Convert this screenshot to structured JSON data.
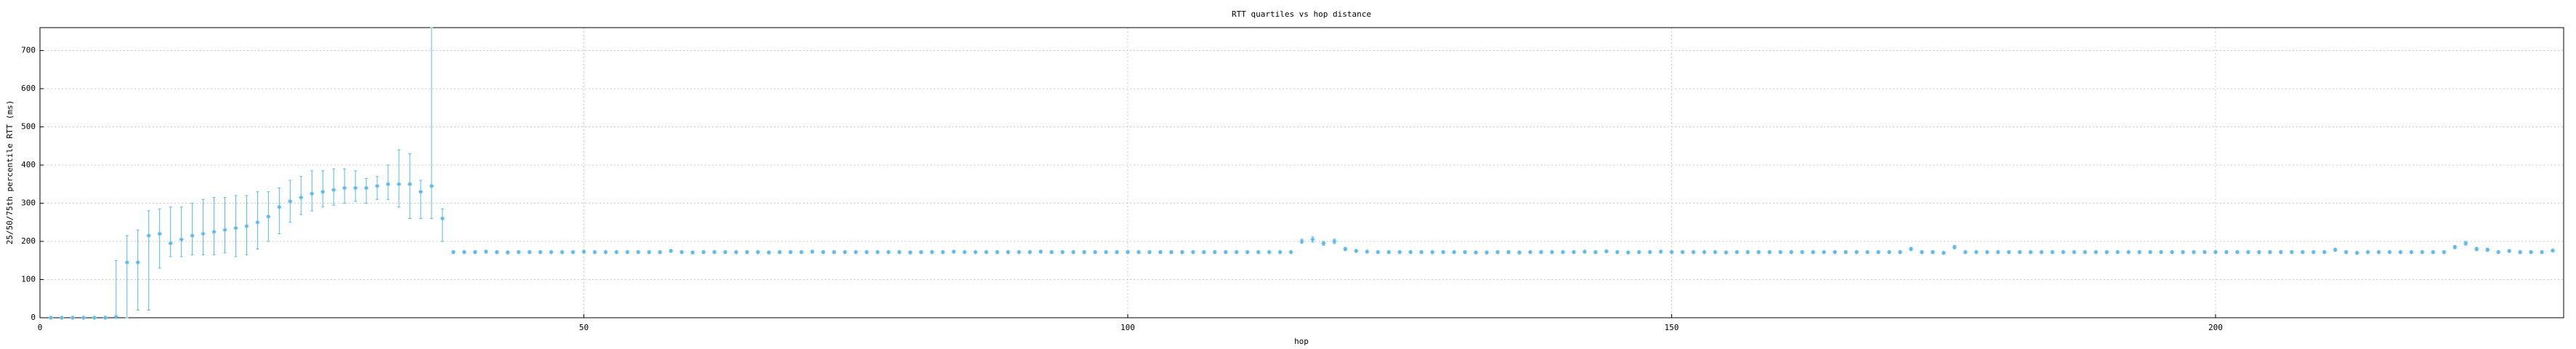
{
  "chart_data": {
    "type": "errorbar",
    "title": "RTT quartiles vs hop distance",
    "xlabel": "hop",
    "ylabel": "25/50/75th percentile RTT (ms)",
    "color": "#5bb8e8",
    "grid": true,
    "xlim": [
      0,
      232
    ],
    "ylim": [
      0,
      760
    ],
    "xticks": [
      0,
      50,
      100,
      150,
      200
    ],
    "yticks": [
      0,
      100,
      200,
      300,
      400,
      500,
      600,
      700
    ],
    "x": [
      1,
      2,
      3,
      4,
      5,
      6,
      7,
      8,
      9,
      10,
      11,
      12,
      13,
      14,
      15,
      16,
      17,
      18,
      19,
      20,
      21,
      22,
      23,
      24,
      25,
      26,
      27,
      28,
      29,
      30,
      31,
      32,
      33,
      34,
      35,
      36,
      37,
      38,
      39,
      40,
      41,
      42,
      43,
      44,
      45,
      46,
      47,
      48,
      49,
      50,
      51,
      52,
      53,
      54,
      55,
      56,
      57,
      58,
      59,
      60,
      61,
      62,
      63,
      64,
      65,
      66,
      67,
      68,
      69,
      70,
      71,
      72,
      73,
      74,
      75,
      76,
      77,
      78,
      79,
      80,
      81,
      82,
      83,
      84,
      85,
      86,
      87,
      88,
      89,
      90,
      91,
      92,
      93,
      94,
      95,
      96,
      97,
      98,
      99,
      100,
      101,
      102,
      103,
      104,
      105,
      106,
      107,
      108,
      109,
      110,
      111,
      112,
      113,
      114,
      115,
      116,
      117,
      118,
      119,
      120,
      121,
      122,
      123,
      124,
      125,
      126,
      127,
      128,
      129,
      130,
      131,
      132,
      133,
      134,
      135,
      136,
      137,
      138,
      139,
      140,
      141,
      142,
      143,
      144,
      145,
      146,
      147,
      148,
      149,
      150,
      151,
      152,
      153,
      154,
      155,
      156,
      157,
      158,
      159,
      160,
      161,
      162,
      163,
      164,
      165,
      166,
      167,
      168,
      169,
      170,
      171,
      172,
      173,
      174,
      175,
      176,
      177,
      178,
      179,
      180,
      181,
      182,
      183,
      184,
      185,
      186,
      187,
      188,
      189,
      190,
      191,
      192,
      193,
      194,
      195,
      196,
      197,
      198,
      199,
      200,
      201,
      202,
      203,
      204,
      205,
      206,
      207,
      208,
      209,
      210,
      211,
      212,
      213,
      214,
      215,
      216,
      217,
      218,
      219,
      220,
      221,
      222,
      223,
      224,
      225,
      226,
      227,
      228,
      229,
      230,
      231
    ],
    "values": [
      0,
      0,
      0,
      0,
      0,
      0,
      2,
      145,
      145,
      215,
      220,
      195,
      205,
      215,
      220,
      225,
      230,
      235,
      240,
      250,
      265,
      290,
      305,
      315,
      325,
      330,
      335,
      340,
      340,
      340,
      345,
      350,
      350,
      350,
      330,
      345,
      260,
      172,
      172,
      172,
      173,
      172,
      171,
      172,
      172,
      172,
      172,
      172,
      172,
      173,
      172,
      172,
      172,
      172,
      172,
      172,
      172,
      175,
      172,
      171,
      172,
      172,
      172,
      172,
      172,
      172,
      171,
      172,
      172,
      172,
      173,
      172,
      172,
      172,
      172,
      172,
      172,
      172,
      172,
      171,
      172,
      172,
      172,
      173,
      172,
      172,
      172,
      172,
      172,
      172,
      172,
      173,
      172,
      172,
      172,
      172,
      172,
      172,
      172,
      172,
      172,
      172,
      172,
      172,
      172,
      172,
      172,
      172,
      172,
      172,
      172,
      172,
      172,
      172,
      172,
      200,
      205,
      195,
      200,
      180,
      175,
      173,
      172,
      172,
      172,
      172,
      172,
      172,
      172,
      172,
      172,
      171,
      171,
      172,
      172,
      171,
      172,
      172,
      172,
      172,
      172,
      173,
      172,
      174,
      172,
      171,
      172,
      172,
      173,
      172,
      172,
      172,
      172,
      172,
      171,
      172,
      172,
      172,
      172,
      172,
      172,
      172,
      172,
      172,
      172,
      172,
      172,
      172,
      172,
      172,
      172,
      180,
      172,
      172,
      170,
      185,
      172,
      172,
      172,
      172,
      172,
      172,
      172,
      172,
      172,
      172,
      172,
      172,
      172,
      172,
      172,
      172,
      172,
      172,
      172,
      172,
      172,
      172,
      172,
      172,
      172,
      172,
      172,
      172,
      172,
      172,
      172,
      172,
      172,
      172,
      178,
      172,
      170,
      172,
      172,
      172,
      172,
      172,
      172,
      172,
      172,
      185,
      195,
      180,
      178,
      172,
      175,
      172,
      172,
      172,
      176
    ],
    "low": [
      0,
      0,
      0,
      0,
      0,
      0,
      0,
      0,
      20,
      20,
      130,
      160,
      160,
      165,
      165,
      165,
      170,
      160,
      165,
      180,
      200,
      220,
      250,
      270,
      280,
      290,
      295,
      300,
      305,
      300,
      310,
      310,
      290,
      260,
      260,
      260,
      200,
      169,
      169,
      169,
      170,
      169,
      168,
      169,
      169,
      169,
      169,
      169,
      169,
      170,
      169,
      169,
      169,
      169,
      169,
      169,
      169,
      172,
      169,
      168,
      169,
      169,
      169,
      169,
      169,
      169,
      168,
      169,
      169,
      169,
      170,
      169,
      169,
      169,
      169,
      169,
      169,
      169,
      169,
      168,
      169,
      169,
      169,
      170,
      169,
      169,
      169,
      169,
      169,
      169,
      169,
      170,
      169,
      169,
      169,
      169,
      169,
      169,
      169,
      169,
      169,
      169,
      169,
      169,
      169,
      169,
      169,
      169,
      169,
      169,
      169,
      169,
      169,
      169,
      169,
      195,
      198,
      190,
      194,
      176,
      172,
      170,
      169,
      169,
      169,
      169,
      169,
      169,
      169,
      169,
      169,
      168,
      168,
      169,
      169,
      168,
      169,
      169,
      169,
      169,
      169,
      170,
      169,
      171,
      169,
      168,
      169,
      169,
      170,
      169,
      169,
      169,
      169,
      169,
      168,
      169,
      169,
      169,
      169,
      169,
      169,
      169,
      169,
      169,
      169,
      169,
      169,
      169,
      169,
      169,
      169,
      176,
      169,
      169,
      167,
      181,
      169,
      169,
      169,
      169,
      169,
      169,
      169,
      169,
      169,
      169,
      169,
      169,
      169,
      169,
      169,
      169,
      169,
      169,
      169,
      169,
      169,
      169,
      169,
      169,
      169,
      169,
      169,
      169,
      169,
      169,
      169,
      169,
      169,
      169,
      174,
      169,
      167,
      169,
      169,
      169,
      169,
      169,
      169,
      169,
      169,
      181,
      190,
      176,
      174,
      169,
      172,
      169,
      169,
      169,
      173
    ],
    "high": [
      0,
      0,
      0,
      0,
      0,
      2,
      150,
      215,
      230,
      280,
      285,
      290,
      290,
      300,
      310,
      315,
      315,
      320,
      320,
      330,
      330,
      340,
      360,
      370,
      385,
      385,
      390,
      390,
      385,
      365,
      370,
      400,
      440,
      430,
      360,
      760,
      285,
      175,
      175,
      175,
      176,
      175,
      174,
      175,
      175,
      175,
      175,
      175,
      175,
      176,
      175,
      175,
      175,
      175,
      175,
      175,
      175,
      178,
      175,
      174,
      175,
      175,
      175,
      175,
      175,
      175,
      174,
      175,
      175,
      175,
      176,
      175,
      175,
      175,
      175,
      175,
      175,
      175,
      175,
      174,
      175,
      175,
      175,
      176,
      175,
      175,
      175,
      175,
      175,
      175,
      175,
      176,
      175,
      175,
      175,
      175,
      175,
      175,
      175,
      175,
      175,
      175,
      175,
      175,
      175,
      175,
      175,
      175,
      175,
      175,
      175,
      175,
      175,
      175,
      175,
      206,
      212,
      200,
      206,
      184,
      178,
      176,
      175,
      175,
      175,
      175,
      175,
      175,
      175,
      175,
      175,
      174,
      174,
      175,
      175,
      174,
      175,
      175,
      175,
      175,
      175,
      176,
      175,
      177,
      175,
      174,
      175,
      175,
      176,
      175,
      175,
      175,
      175,
      175,
      174,
      175,
      175,
      175,
      175,
      175,
      175,
      175,
      175,
      175,
      175,
      175,
      175,
      175,
      175,
      175,
      175,
      184,
      175,
      175,
      173,
      189,
      175,
      175,
      175,
      175,
      175,
      175,
      175,
      175,
      175,
      175,
      175,
      175,
      175,
      175,
      175,
      175,
      175,
      175,
      175,
      175,
      175,
      175,
      175,
      175,
      175,
      175,
      175,
      175,
      175,
      175,
      175,
      175,
      175,
      175,
      182,
      175,
      173,
      175,
      175,
      175,
      175,
      175,
      175,
      175,
      175,
      189,
      200,
      184,
      182,
      175,
      178,
      175,
      175,
      175,
      179
    ]
  }
}
